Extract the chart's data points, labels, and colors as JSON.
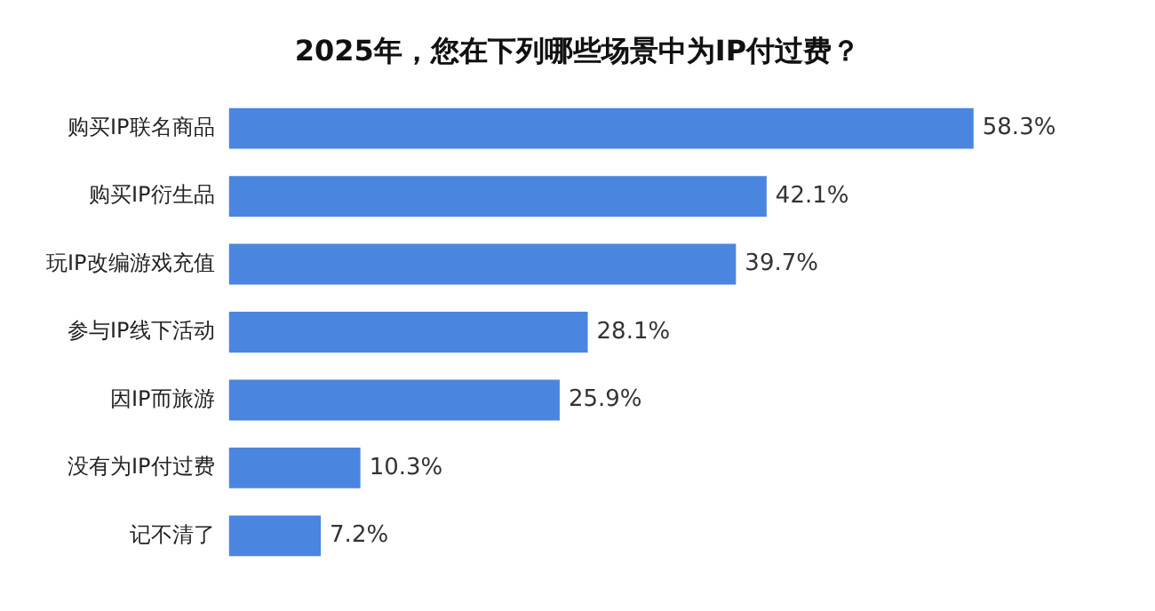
{
  "chart_data": {
    "type": "bar",
    "orientation": "horizontal",
    "title": "2025年，您在下列哪些场景中为IP付过费？",
    "categories": [
      "购买IP联名商品",
      "购买IP衍生品",
      "玩IP改编游戏充值",
      "参与IP线下活动",
      "因IP而旅游",
      "没有为IP付过费",
      "记不清了"
    ],
    "values": [
      58.3,
      42.1,
      39.7,
      28.1,
      25.9,
      10.3,
      7.2
    ],
    "value_labels": [
      "58.3%",
      "42.1%",
      "39.7%",
      "28.1%",
      "25.9%",
      "10.3%",
      "7.2%"
    ],
    "color": "#4a86e0",
    "grid": false,
    "legend": false,
    "tick_labels": "y"
  }
}
